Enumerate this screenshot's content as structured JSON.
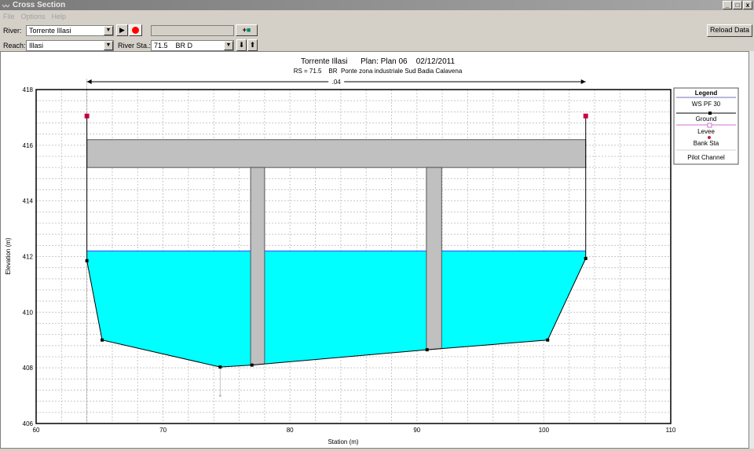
{
  "window": {
    "title": "Cross Section",
    "buttons": [
      "_",
      "□",
      "x"
    ]
  },
  "menu": [
    "File",
    "Options",
    "Help"
  ],
  "toolbar": {
    "river_label": "River:",
    "river_value": "Torrente Illasi",
    "reach_label": "Reach:",
    "reach_value": "Illasi",
    "river_sta_label": "River Sta.:",
    "river_sta_value": "71.5    BR D",
    "plan_field_value": "",
    "reload_label": "Reload Data",
    "icons": [
      "play-icon",
      "record-icon",
      "add-icon",
      "camera-icon",
      "arrow-down-icon",
      "arrow-up-icon"
    ]
  },
  "chart_data": {
    "type": "line",
    "title": "Torrente Illasi      Plan: Plan 06    02/12/2011",
    "subtitle": "RS = 71.5    BR  Ponte zona industriale Sud Badia Calavena",
    "xlabel": "Station (m)",
    "ylabel": "Elevation (m)",
    "xlim": [
      60,
      110
    ],
    "ylim": [
      406,
      418
    ],
    "xticks": [
      60,
      70,
      80,
      90,
      100,
      110
    ],
    "yticks": [
      406,
      408,
      410,
      412,
      414,
      416,
      418
    ],
    "grid": true,
    "manning_label": ".04",
    "manning_extent": [
      64,
      103.3
    ],
    "ground": [
      [
        64,
        417.05
      ],
      [
        64,
        411.85
      ],
      [
        65.2,
        409.0
      ],
      [
        74.5,
        408.03
      ],
      [
        77.0,
        408.1
      ],
      [
        90.8,
        408.65
      ],
      [
        100.3,
        409.0
      ],
      [
        103.3,
        411.93
      ],
      [
        103.3,
        417.05
      ]
    ],
    "water_surface": 412.2,
    "deck": {
      "low_chord": 415.2,
      "high_chord": 416.2,
      "from": 64,
      "to": 103.3
    },
    "piers": [
      {
        "from": 76.9,
        "to": 78.0
      },
      {
        "from": 90.75,
        "to": 91.95
      }
    ],
    "levees": [
      [
        64,
        417.05
      ],
      [
        103.3,
        417.05
      ]
    ],
    "pilot_channel": {
      "station": 74.5,
      "top": 408.03,
      "bottom": 407.0
    },
    "colors": {
      "water": "#00ffff",
      "ws_line": "#4040ff",
      "ground": "#000000",
      "levee": "#cc0044",
      "deck": "#c0c0c0",
      "pilot": "#c0c0c0"
    },
    "legend": {
      "title": "Legend",
      "placement": "right",
      "items": [
        "WS PF 30",
        "Ground",
        "Levee",
        "Bank Sta",
        "Pilot Channel"
      ]
    }
  }
}
